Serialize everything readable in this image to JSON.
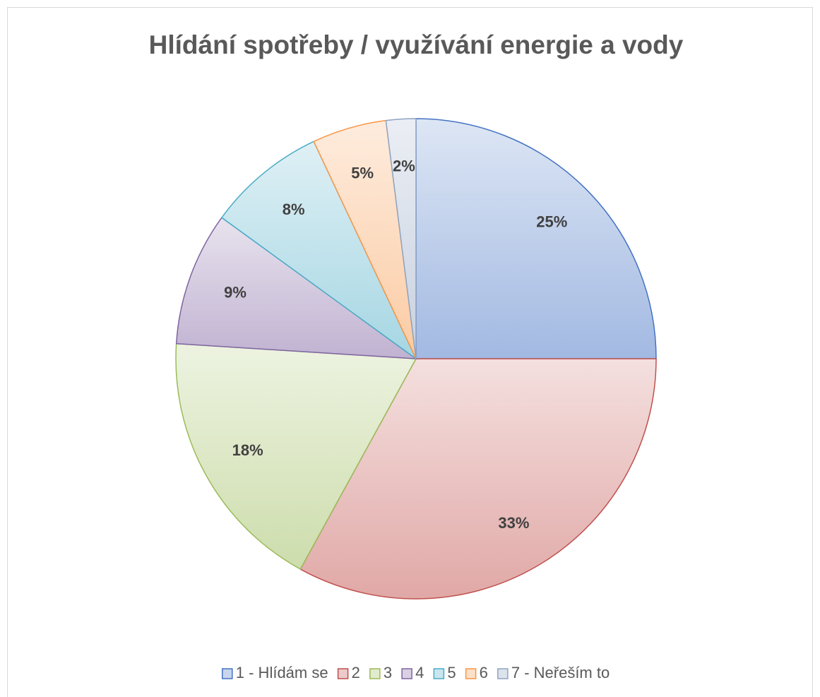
{
  "chart_data": {
    "type": "pie",
    "title": "Hlídání spotřeby / využívání energie a vody",
    "categories": [
      "1 - Hlídám se",
      "2",
      "3",
      "4",
      "5",
      "6",
      "7 - Neřeším to"
    ],
    "values": [
      25,
      33,
      18,
      9,
      8,
      5,
      2
    ],
    "value_labels": [
      "25%",
      "33%",
      "18%",
      "9%",
      "8%",
      "5%",
      "2%"
    ],
    "colors": [
      "#4472c4",
      "#c0504d",
      "#9bbb59",
      "#8064a2",
      "#4bacc6",
      "#f79646",
      "#8fa3c1"
    ],
    "legend": "bottom"
  }
}
